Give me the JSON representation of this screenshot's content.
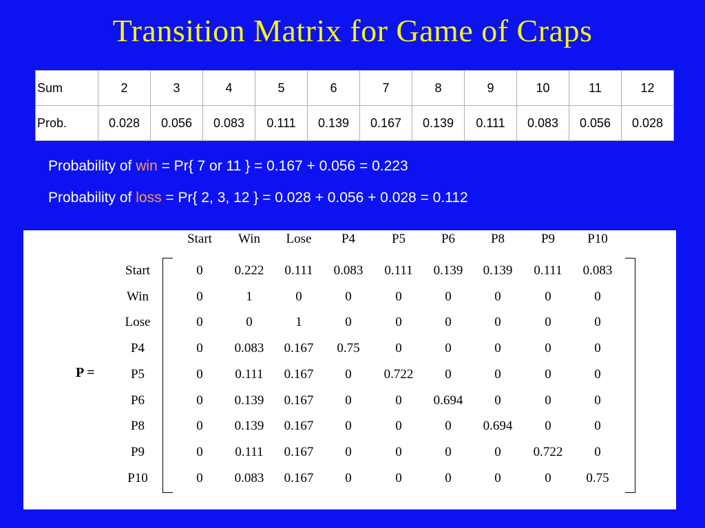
{
  "slide": {
    "title": "Transition Matrix for Game of Craps",
    "background": "#0d12f2",
    "title_color": "#f4f41e",
    "highlight_color": "#ff9a4a"
  },
  "dice_table": {
    "sum_label": "Sum",
    "prob_label": "Prob.",
    "sums": [
      "2",
      "3",
      "4",
      "5",
      "6",
      "7",
      "8",
      "9",
      "10",
      "11",
      "12"
    ],
    "probs": [
      "0.028",
      "0.056",
      "0.083",
      "0.111",
      "0.139",
      "0.167",
      "0.139",
      "0.111",
      "0.083",
      "0.056",
      "0.028"
    ]
  },
  "lines": {
    "win": {
      "prefix": "Probability of ",
      "word": "win",
      "rest": " = Pr{ 7 or 11 } = 0.167 + 0.056 = 0.223"
    },
    "loss": {
      "prefix": "Probability of ",
      "word": "loss",
      "rest": " = Pr{ 2, 3, 12 } = 0.028 + 0.056 + 0.028 = 0.112"
    }
  },
  "matrix": {
    "label": "P =",
    "cols": [
      "Start",
      "Win",
      "Lose",
      "P4",
      "P5",
      "P6",
      "P8",
      "P9",
      "P10"
    ],
    "rows": [
      {
        "name": "Start",
        "values": [
          "0",
          "0.222",
          "0.111",
          "0.083",
          "0.111",
          "0.139",
          "0.139",
          "0.111",
          "0.083"
        ]
      },
      {
        "name": "Win",
        "values": [
          "0",
          "1",
          "0",
          "0",
          "0",
          "0",
          "0",
          "0",
          "0"
        ]
      },
      {
        "name": "Lose",
        "values": [
          "0",
          "0",
          "1",
          "0",
          "0",
          "0",
          "0",
          "0",
          "0"
        ]
      },
      {
        "name": "P4",
        "values": [
          "0",
          "0.083",
          "0.167",
          "0.75",
          "0",
          "0",
          "0",
          "0",
          "0"
        ]
      },
      {
        "name": "P5",
        "values": [
          "0",
          "0.111",
          "0.167",
          "0",
          "0.722",
          "0",
          "0",
          "0",
          "0"
        ]
      },
      {
        "name": "P6",
        "values": [
          "0",
          "0.139",
          "0.167",
          "0",
          "0",
          "0.694",
          "0",
          "0",
          "0"
        ]
      },
      {
        "name": "P8",
        "values": [
          "0",
          "0.139",
          "0.167",
          "0",
          "0",
          "0",
          "0.694",
          "0",
          "0"
        ]
      },
      {
        "name": "P9",
        "values": [
          "0",
          "0.111",
          "0.167",
          "0",
          "0",
          "0",
          "0",
          "0.722",
          "0"
        ]
      },
      {
        "name": "P10",
        "values": [
          "0",
          "0.083",
          "0.167",
          "0",
          "0",
          "0",
          "0",
          "0",
          "0.75"
        ]
      }
    ]
  }
}
